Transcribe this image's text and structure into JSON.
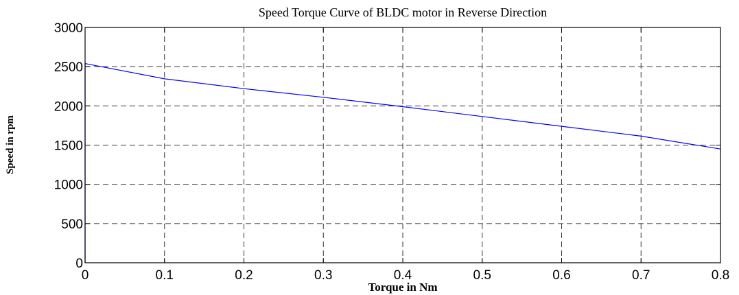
{
  "chart_data": {
    "type": "line",
    "title": "Speed Torque Curve of BLDC motor in Reverse Direction",
    "xlabel": "Torque in Nm",
    "ylabel": "Speed in rpm",
    "xlim": [
      0,
      0.8
    ],
    "ylim": [
      0,
      3000
    ],
    "xticks": [
      0,
      0.1,
      0.2,
      0.3,
      0.4,
      0.5,
      0.6,
      0.7,
      0.8
    ],
    "xtick_labels": [
      "0",
      "0.1",
      "0.2",
      "0.3",
      "0.4",
      "0.5",
      "0.6",
      "0.7",
      "0.8"
    ],
    "yticks": [
      0,
      500,
      1000,
      1500,
      2000,
      2500,
      3000
    ],
    "ytick_labels": [
      "0",
      "500",
      "1000",
      "1500",
      "2000",
      "2500",
      "3000"
    ],
    "grid": true,
    "series_color": "#0000ff",
    "series": [
      {
        "x": [
          0,
          0,
          0.1,
          0.2,
          0.3,
          0.4,
          0.5,
          0.6,
          0.7,
          0.8
        ],
        "y": [
          0,
          2540,
          2345,
          2220,
          2110,
          1990,
          1865,
          1740,
          1615,
          1450
        ]
      }
    ]
  }
}
